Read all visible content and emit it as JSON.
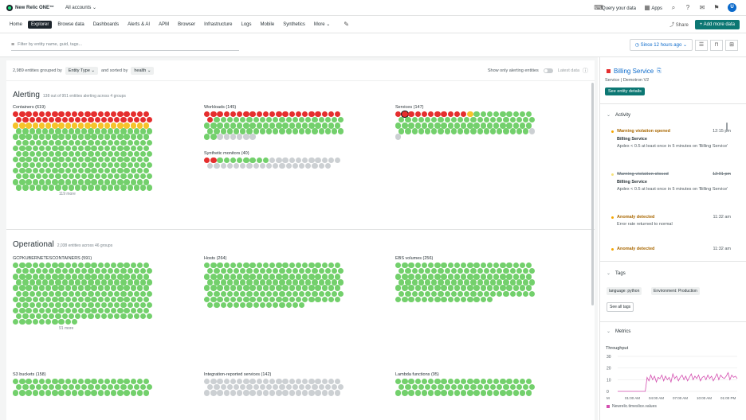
{
  "topbar": {
    "logo": "New Relic ONE™",
    "accounts": "All accounts ⌄",
    "query": "Query your data",
    "apps": "Apps",
    "avatar": "U"
  },
  "nav": {
    "tabs": [
      "Home",
      "Explorer",
      "Browse data",
      "Dashboards",
      "Alerts & AI",
      "APM",
      "Browser",
      "Infrastructure",
      "Logs",
      "Mobile",
      "Synthetics",
      "More ⌄"
    ],
    "active_index": 1,
    "share": "Share",
    "add": "+ Add more data"
  },
  "filter": {
    "placeholder": "Filter by entity name, guid, tags...",
    "time": "Since 12 hours ago ⌄"
  },
  "options": {
    "count_text": "2,989 entities grouped by",
    "group_by": "Entity Type ⌄",
    "sorted_text": "and sorted by",
    "sort_by": "health ⌄",
    "alert_only": "Show only alerting entities",
    "latest": "Latest data"
  },
  "alerting": {
    "title": "Alerting",
    "sub": "138 out of 951 entities alerting across 4 groups",
    "groups": [
      {
        "name": "Containers (619)",
        "counts": {
          "r": 42,
          "y": 21,
          "g": 231,
          "gr": 0
        },
        "cols": 21,
        "more": "119 more"
      },
      {
        "name": "Workloads (145)",
        "counts": {
          "r": 22,
          "y": 0,
          "g": 64,
          "gr": 6
        },
        "cols": 21,
        "more": ""
      },
      {
        "name": "Services (147)",
        "counts": {
          "r": 11,
          "y": 1,
          "g": 71,
          "gr": 2
        },
        "cols": 21,
        "more": ""
      },
      {
        "name": "Synthetic monitors (40)",
        "counts": {
          "r": 2,
          "y": 0,
          "g": 8,
          "gr": 30
        },
        "cols": 21,
        "more": ""
      }
    ]
  },
  "operational": {
    "title": "Operational",
    "sub": "2,038 entities across 46 groups",
    "groups": [
      {
        "name": "GCPKUBERNETESCONTAINERS (591)",
        "counts": {
          "r": 0,
          "y": 0,
          "g": 220,
          "gr": 0
        },
        "cols": 21,
        "more": "91 more"
      },
      {
        "name": "Hosts (264)",
        "counts": {
          "r": 0,
          "y": 0,
          "g": 162,
          "gr": 0
        },
        "cols": 21,
        "more": ""
      },
      {
        "name": "EBS volumes (256)",
        "counts": {
          "r": 0,
          "y": 0,
          "g": 141,
          "gr": 0
        },
        "cols": 21,
        "more": ""
      },
      {
        "name": "S3 buckets (158)",
        "counts": {
          "r": 0,
          "y": 0,
          "g": 63,
          "gr": 0
        },
        "cols": 21,
        "more": ""
      },
      {
        "name": "Integration-reported services (142)",
        "counts": {
          "r": 0,
          "y": 0,
          "g": 0,
          "gr": 63
        },
        "cols": 21,
        "more": ""
      },
      {
        "name": "Lambda functions (95)",
        "counts": {
          "r": 0,
          "y": 0,
          "g": 63,
          "gr": 0
        },
        "cols": 21,
        "more": ""
      }
    ]
  },
  "side": {
    "title": "Billing Service",
    "subtitle": "Service  |  Demotron V2",
    "see_details": "See entity details",
    "activity_title": "Activity",
    "activity": [
      {
        "title": "Warning violation opened",
        "time": "12:15 pm",
        "entity": "Billing Service",
        "desc": "Apdex < 0.5 at least once in 5 minutes on 'Billing Service'",
        "closed": false
      },
      {
        "title": "Warning violation closed",
        "time": "12:01 pm",
        "entity": "Billing Service",
        "desc": "Apdex < 0.5 at least once in 5 minutes on 'Billing Service'",
        "closed": true
      },
      {
        "title": "Anomaly detected",
        "time": "11:32 am",
        "entity": "",
        "desc": "Error rate returned to normal",
        "closed": false
      },
      {
        "title": "Anomaly detected",
        "time": "11:32 am",
        "entity": "",
        "desc": "",
        "closed": false
      }
    ],
    "tags_title": "Tags",
    "tags": [
      "language: python",
      "Environment: Production"
    ],
    "see_all_tags": "See all tags",
    "metrics_title": "Metrics",
    "throughput": "Throughput",
    "legend": "Newrelic.timeslice.values"
  },
  "chart_data": {
    "type": "line",
    "title": "Throughput",
    "y_ticks": [
      "30",
      "20",
      "10",
      "0"
    ],
    "x_ticks": [
      "M",
      "01:00 AM",
      "04:00 AM",
      "07:00 AM",
      "10:00 AM",
      "01:00 PM"
    ],
    "ylim": [
      0,
      30
    ],
    "series": [
      {
        "name": "Newrelic.timeslice.values",
        "color": "#d44fb0",
        "values": [
          0,
          0,
          0,
          0,
          0,
          0,
          0,
          0,
          0,
          0,
          0,
          0,
          0,
          0,
          0,
          0,
          12,
          9,
          14,
          10,
          13,
          8,
          12,
          11,
          14,
          9,
          13,
          10,
          12,
          8,
          15,
          11,
          13,
          9,
          12,
          14,
          10,
          13,
          9,
          12,
          15,
          10,
          13,
          11,
          14,
          9,
          12,
          13,
          10,
          14,
          11,
          13,
          9,
          12,
          15,
          10,
          14,
          12,
          11,
          13,
          16,
          10,
          14,
          12,
          13,
          11
        ]
      }
    ]
  }
}
